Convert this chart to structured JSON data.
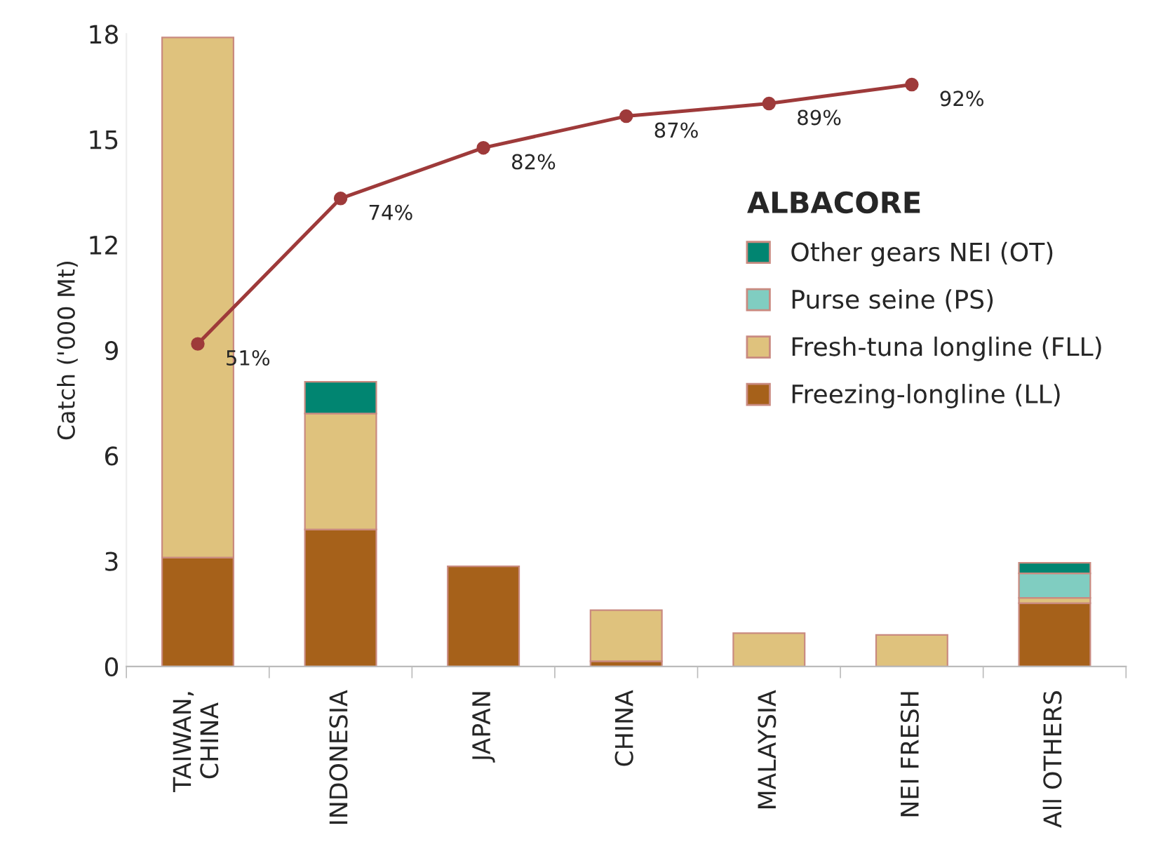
{
  "chart_data": {
    "type": "bar",
    "stacked": true,
    "ylabel": "Catch ('000 Mt)",
    "legend_title": "ALBACORE",
    "legend": "right",
    "categories": [
      "TAIWAN,\nCHINA",
      "INDONESIA",
      "JAPAN",
      "CHINA",
      "MALAYSIA",
      "NEI FRESH",
      "All OTHERS"
    ],
    "ylim": [
      0,
      18
    ],
    "yticks": [
      0,
      3,
      6,
      9,
      12,
      15,
      18
    ],
    "y2lim": [
      0,
      100
    ],
    "grid": false,
    "series": [
      {
        "name": "Freezing-longline (LL)",
        "color": "#a6611a",
        "values": [
          3.1,
          3.9,
          2.85,
          0.15,
          0,
          0,
          1.8
        ]
      },
      {
        "name": "Fresh-tuna longline (FLL)",
        "color": "#dfc27d",
        "values": [
          14.8,
          3.3,
          0,
          1.45,
          0.95,
          0.9,
          0.15
        ]
      },
      {
        "name": "Purse seine (PS)",
        "color": "#80cdc1",
        "values": [
          0,
          0,
          0,
          0,
          0,
          0,
          0.7
        ]
      },
      {
        "name": "Other gears NEI (OT)",
        "color": "#018571",
        "values": [
          0,
          0.9,
          0,
          0,
          0,
          0,
          0.3
        ]
      },
      {
        "type": "line",
        "axis": "y2",
        "color": "#9e3a3a",
        "marker": "circle",
        "values": [
          51,
          74,
          82,
          87,
          89,
          92,
          null
        ],
        "value_labels": [
          "51%",
          "74%",
          "82%",
          "87%",
          "89%",
          "92%",
          null
        ]
      }
    ]
  }
}
